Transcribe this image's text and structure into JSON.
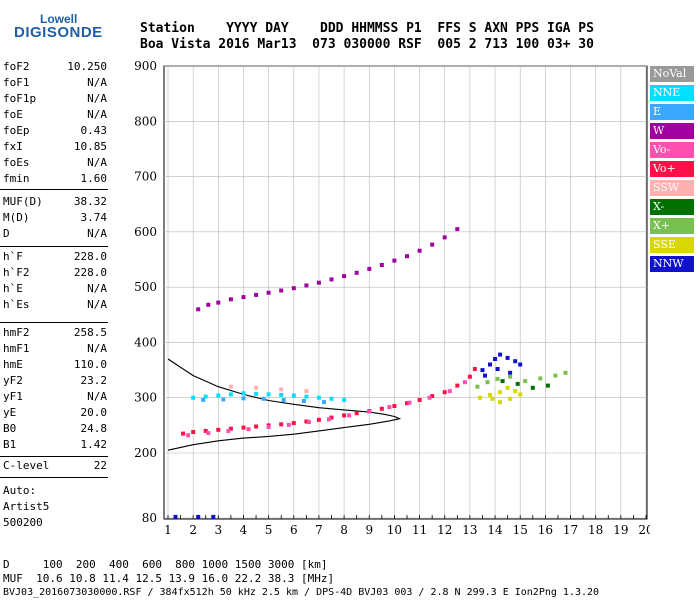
{
  "logo": {
    "brand": "Lowell",
    "product": "DIGISONDE"
  },
  "header": {
    "line1": "Station    YYYY DAY    DDD HHMMSS P1  FFS S AXN PPS IGA PS",
    "line2": "Boa Vista 2016 Mar13  073 030000 RSF  005 2 713 100 03+ 30"
  },
  "params": [
    {
      "name": "foF2",
      "value": "10.250"
    },
    {
      "name": "foF1",
      "value": "N/A"
    },
    {
      "name": "foF1p",
      "value": "N/A"
    },
    {
      "name": "foE",
      "value": "N/A"
    },
    {
      "name": "foEp",
      "value": "0.43"
    },
    {
      "name": "fxI",
      "value": "10.85"
    },
    {
      "name": "foEs",
      "value": "N/A"
    },
    {
      "name": "fmin",
      "value": "1.60"
    },
    {
      "name": "MUF(D)",
      "value": "38.32"
    },
    {
      "name": "M(D)",
      "value": "3.74"
    },
    {
      "name": "D",
      "value": "N/A"
    },
    {
      "name": "h`F",
      "value": "228.0"
    },
    {
      "name": "h`F2",
      "value": "228.0"
    },
    {
      "name": "h`E",
      "value": "N/A"
    },
    {
      "name": "h`Es",
      "value": "N/A"
    },
    {
      "name": "hmF2",
      "value": "258.5"
    },
    {
      "name": "hmF1",
      "value": "N/A"
    },
    {
      "name": "hmE",
      "value": "110.0"
    },
    {
      "name": "yF2",
      "value": "23.2"
    },
    {
      "name": "yF1",
      "value": "N/A"
    },
    {
      "name": "yE",
      "value": "20.0"
    },
    {
      "name": "B0",
      "value": "24.8"
    },
    {
      "name": "B1",
      "value": "1.42"
    },
    {
      "name": "C-level",
      "value": "22"
    }
  ],
  "autoscale": {
    "line1": "Auto:",
    "line2": "Artist5",
    "line3": "500200"
  },
  "legend": [
    {
      "label": "NoVal",
      "color": "#999999"
    },
    {
      "label": "NNE",
      "color": "#00e0ff"
    },
    {
      "label": "E",
      "color": "#3aa8ff"
    },
    {
      "label": "W",
      "color": "#a000a0"
    },
    {
      "label": "Vo-",
      "color": "#ff50b0"
    },
    {
      "label": "Vo+",
      "color": "#ff1048"
    },
    {
      "label": "SSW",
      "color": "#ffb0b0"
    },
    {
      "label": "X-",
      "color": "#007000"
    },
    {
      "label": "X+",
      "color": "#78c050"
    },
    {
      "label": "SSE",
      "color": "#d8d800"
    },
    {
      "label": "NNW",
      "color": "#1010d0"
    }
  ],
  "footer": {
    "line1": "D     100  200  400  600  800 1000 1500 3000 [km]",
    "line2": "MUF  10.6 10.8 11.4 12.5 13.9 16.0 22.2 38.3 [MHz]",
    "line3": "BVJ03_2016073030000.RSF / 384fx512h 50 kHz 2.5 km / DPS-4D BVJ03 003 / 2.8 N 299.3 E Ion2Png 1.3.20"
  },
  "chart_data": {
    "type": "scatter",
    "xlim": [
      1,
      20
    ],
    "ylim": [
      80,
      900
    ],
    "x_ticks": [
      1,
      2,
      3,
      4,
      5,
      6,
      7,
      8,
      9,
      10,
      11,
      12,
      13,
      14,
      15,
      16,
      17,
      18,
      19,
      20
    ],
    "y_ticks": [
      80,
      200,
      300,
      400,
      500,
      600,
      700,
      800,
      900
    ],
    "grid": true,
    "legend_position": "right",
    "series": [
      {
        "name": "Vo+",
        "color": "#ff1048",
        "points": [
          [
            1.6,
            235
          ],
          [
            2,
            238
          ],
          [
            2.5,
            240
          ],
          [
            3,
            242
          ],
          [
            3.5,
            244
          ],
          [
            4,
            246
          ],
          [
            4.5,
            248
          ],
          [
            5,
            250
          ],
          [
            5.5,
            252
          ],
          [
            6,
            254
          ],
          [
            6.5,
            257
          ],
          [
            7,
            260
          ],
          [
            7.5,
            264
          ],
          [
            8,
            268
          ],
          [
            8.5,
            272
          ],
          [
            9,
            276
          ],
          [
            9.5,
            280
          ],
          [
            10,
            285
          ],
          [
            10.5,
            290
          ],
          [
            11,
            296
          ],
          [
            11.5,
            303
          ],
          [
            12,
            310
          ],
          [
            12.5,
            322
          ],
          [
            13,
            338
          ],
          [
            13.2,
            352
          ]
        ]
      },
      {
        "name": "Vo-",
        "color": "#ff50b0",
        "points": [
          [
            1.8,
            232
          ],
          [
            2.6,
            236
          ],
          [
            3.4,
            240
          ],
          [
            4.2,
            243
          ],
          [
            5,
            247
          ],
          [
            5.8,
            251
          ],
          [
            6.6,
            256
          ],
          [
            7.4,
            261
          ],
          [
            8.2,
            268
          ],
          [
            9,
            275
          ],
          [
            9.8,
            283
          ],
          [
            10.6,
            291
          ],
          [
            11.4,
            300
          ],
          [
            12.2,
            312
          ],
          [
            12.8,
            328
          ]
        ]
      },
      {
        "name": "W",
        "color": "#a000a0",
        "points": [
          [
            2.2,
            460
          ],
          [
            2.6,
            468
          ],
          [
            3,
            472
          ],
          [
            3.5,
            478
          ],
          [
            4,
            482
          ],
          [
            4.5,
            486
          ],
          [
            5,
            490
          ],
          [
            5.5,
            494
          ],
          [
            6,
            498
          ],
          [
            6.5,
            503
          ],
          [
            7,
            508
          ],
          [
            7.5,
            514
          ],
          [
            8,
            520
          ],
          [
            8.5,
            526
          ],
          [
            9,
            533
          ],
          [
            9.5,
            540
          ],
          [
            10,
            548
          ],
          [
            10.5,
            556
          ],
          [
            11,
            566
          ],
          [
            11.5,
            577
          ],
          [
            12,
            590
          ],
          [
            12.5,
            605
          ]
        ]
      },
      {
        "name": "NNE",
        "color": "#00e0ff",
        "points": [
          [
            2,
            300
          ],
          [
            2.5,
            302
          ],
          [
            3,
            304
          ],
          [
            3.5,
            306
          ],
          [
            4,
            308
          ],
          [
            4.5,
            307
          ],
          [
            5,
            306
          ],
          [
            5.5,
            305
          ],
          [
            6,
            304
          ],
          [
            6.5,
            302
          ],
          [
            7,
            300
          ],
          [
            7.5,
            298
          ],
          [
            8,
            296
          ]
        ]
      },
      {
        "name": "E",
        "color": "#3aa8ff",
        "points": [
          [
            2.4,
            296
          ],
          [
            3.2,
            297
          ],
          [
            4,
            299
          ],
          [
            4.8,
            298
          ],
          [
            5.6,
            296
          ],
          [
            6.4,
            294
          ],
          [
            7.2,
            292
          ]
        ]
      },
      {
        "name": "NNW",
        "color": "#1010d0",
        "points": [
          [
            13.5,
            350
          ],
          [
            13.8,
            360
          ],
          [
            14,
            370
          ],
          [
            14.2,
            378
          ],
          [
            14.5,
            372
          ],
          [
            14.8,
            366
          ],
          [
            15,
            360
          ],
          [
            13.6,
            340
          ],
          [
            14.1,
            352
          ],
          [
            14.6,
            345
          ],
          [
            1.3,
            82
          ],
          [
            2.2,
            82
          ],
          [
            2.8,
            82
          ]
        ]
      },
      {
        "name": "SSE",
        "color": "#d8d800",
        "points": [
          [
            13.4,
            300
          ],
          [
            13.8,
            305
          ],
          [
            14.2,
            310
          ],
          [
            14.5,
            318
          ],
          [
            14.8,
            312
          ],
          [
            15,
            306
          ],
          [
            14.6,
            298
          ],
          [
            14.2,
            292
          ],
          [
            13.9,
            298
          ]
        ]
      },
      {
        "name": "X+",
        "color": "#78c050",
        "points": [
          [
            13.3,
            320
          ],
          [
            13.7,
            328
          ],
          [
            14.1,
            334
          ],
          [
            14.6,
            338
          ],
          [
            15.2,
            330
          ],
          [
            15.8,
            335
          ],
          [
            16.4,
            340
          ],
          [
            16.8,
            345
          ]
        ]
      },
      {
        "name": "X-",
        "color": "#007000",
        "points": [
          [
            14.3,
            330
          ],
          [
            14.9,
            325
          ],
          [
            15.5,
            318
          ],
          [
            16.1,
            322
          ]
        ]
      },
      {
        "name": "SSW",
        "color": "#ffb0b0",
        "points": [
          [
            3.5,
            320
          ],
          [
            4.5,
            318
          ],
          [
            5.5,
            315
          ],
          [
            6.5,
            312
          ]
        ]
      }
    ],
    "profile_line": [
      [
        1,
        205
      ],
      [
        2,
        215
      ],
      [
        3,
        222
      ],
      [
        4,
        227
      ],
      [
        5,
        230
      ],
      [
        6,
        234
      ],
      [
        7,
        240
      ],
      [
        8,
        246
      ],
      [
        9,
        252
      ],
      [
        9.8,
        258
      ],
      [
        10.2,
        262
      ],
      [
        10,
        266
      ],
      [
        9.6,
        270
      ],
      [
        9,
        274
      ],
      [
        8,
        278
      ],
      [
        7,
        282
      ],
      [
        6,
        288
      ],
      [
        5,
        295
      ],
      [
        4,
        306
      ],
      [
        3,
        320
      ],
      [
        2,
        340
      ],
      [
        1,
        370
      ]
    ]
  }
}
